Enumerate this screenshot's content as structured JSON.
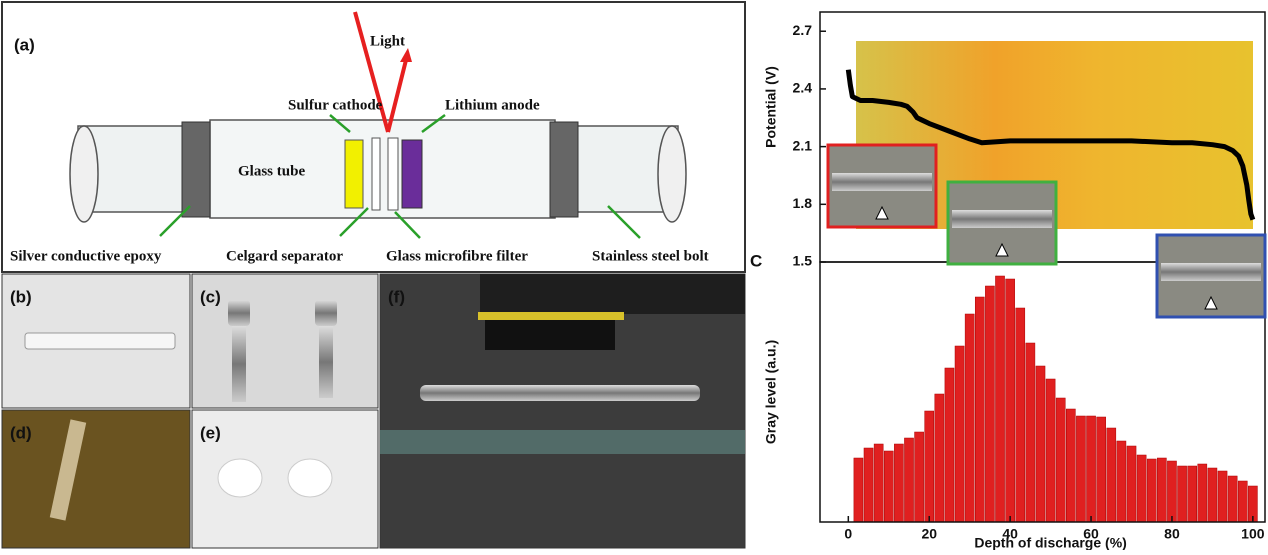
{
  "diagram": {
    "panel_label": "(a)",
    "labels": {
      "light": "Light",
      "sulfur_cathode": "Sulfur cathode",
      "lithium_anode": "Lithium anode",
      "glass_tube": "Glass tube",
      "silver_epoxy": "Silver conductive epoxy",
      "celgard": "Celgard separator",
      "glass_filter": "Glass microfibre filter",
      "bolt": "Stainless steel bolt"
    }
  },
  "photos": [
    {
      "label": "(b)"
    },
    {
      "label": "(c)"
    },
    {
      "label": "(d)"
    },
    {
      "label": "(e)"
    },
    {
      "label": "(f)"
    }
  ],
  "chart_data": [
    {
      "type": "line",
      "y_label": "Potential (V)",
      "xlim": [
        -7,
        103
      ],
      "ylim": [
        1.5,
        2.8
      ],
      "yticks": [
        1.5,
        1.8,
        2.1,
        2.4,
        2.7
      ],
      "series": [
        {
          "color": "#000000",
          "x": [
            0,
            0.5,
            1,
            3,
            6,
            10,
            13,
            14.5,
            16,
            17,
            18,
            20,
            25,
            30,
            33,
            40,
            50,
            60,
            70,
            80,
            85,
            90,
            93,
            95,
            96.5,
            97.5,
            98.5,
            99,
            99.5,
            100
          ],
          "values": [
            2.5,
            2.42,
            2.36,
            2.34,
            2.34,
            2.33,
            2.32,
            2.31,
            2.28,
            2.25,
            2.24,
            2.22,
            2.18,
            2.14,
            2.12,
            2.13,
            2.13,
            2.13,
            2.13,
            2.12,
            2.12,
            2.11,
            2.1,
            2.08,
            2.05,
            2.0,
            1.9,
            1.82,
            1.75,
            1.72
          ]
        }
      ]
    },
    {
      "type": "histogram",
      "panel_label": "C",
      "x_label": "Depth of discharge (%)",
      "y_label": "Gray level (a.u.)",
      "color": "#e02020",
      "xlim": [
        -7,
        103
      ],
      "xticks": [
        0,
        20,
        40,
        60,
        80,
        100
      ],
      "ylim": [
        0,
        260
      ],
      "bins": [
        1.25,
        3.75,
        6.25,
        8.75,
        11.25,
        13.75,
        16.25,
        18.75,
        21.25,
        23.75,
        26.25,
        28.75,
        31.25,
        33.75,
        36.25,
        38.75,
        41.25,
        43.75,
        46.25,
        48.75,
        51.25,
        53.75,
        56.25,
        58.75,
        61.25,
        63.75,
        66.25,
        68.75,
        71.25,
        73.75,
        76.25,
        78.75,
        81.25,
        83.75,
        86.25,
        88.75,
        91.25,
        93.75,
        96.25,
        98.75,
        101.25
      ],
      "values": [
        64,
        74,
        78,
        71,
        78,
        84,
        90,
        111,
        128,
        154,
        176,
        208,
        225,
        236,
        246,
        243,
        214,
        179,
        156,
        143,
        124,
        113,
        106,
        106,
        105,
        94,
        81,
        76,
        67,
        63,
        64,
        61,
        56,
        56,
        58,
        54,
        51,
        46,
        41,
        36
      ]
    }
  ]
}
